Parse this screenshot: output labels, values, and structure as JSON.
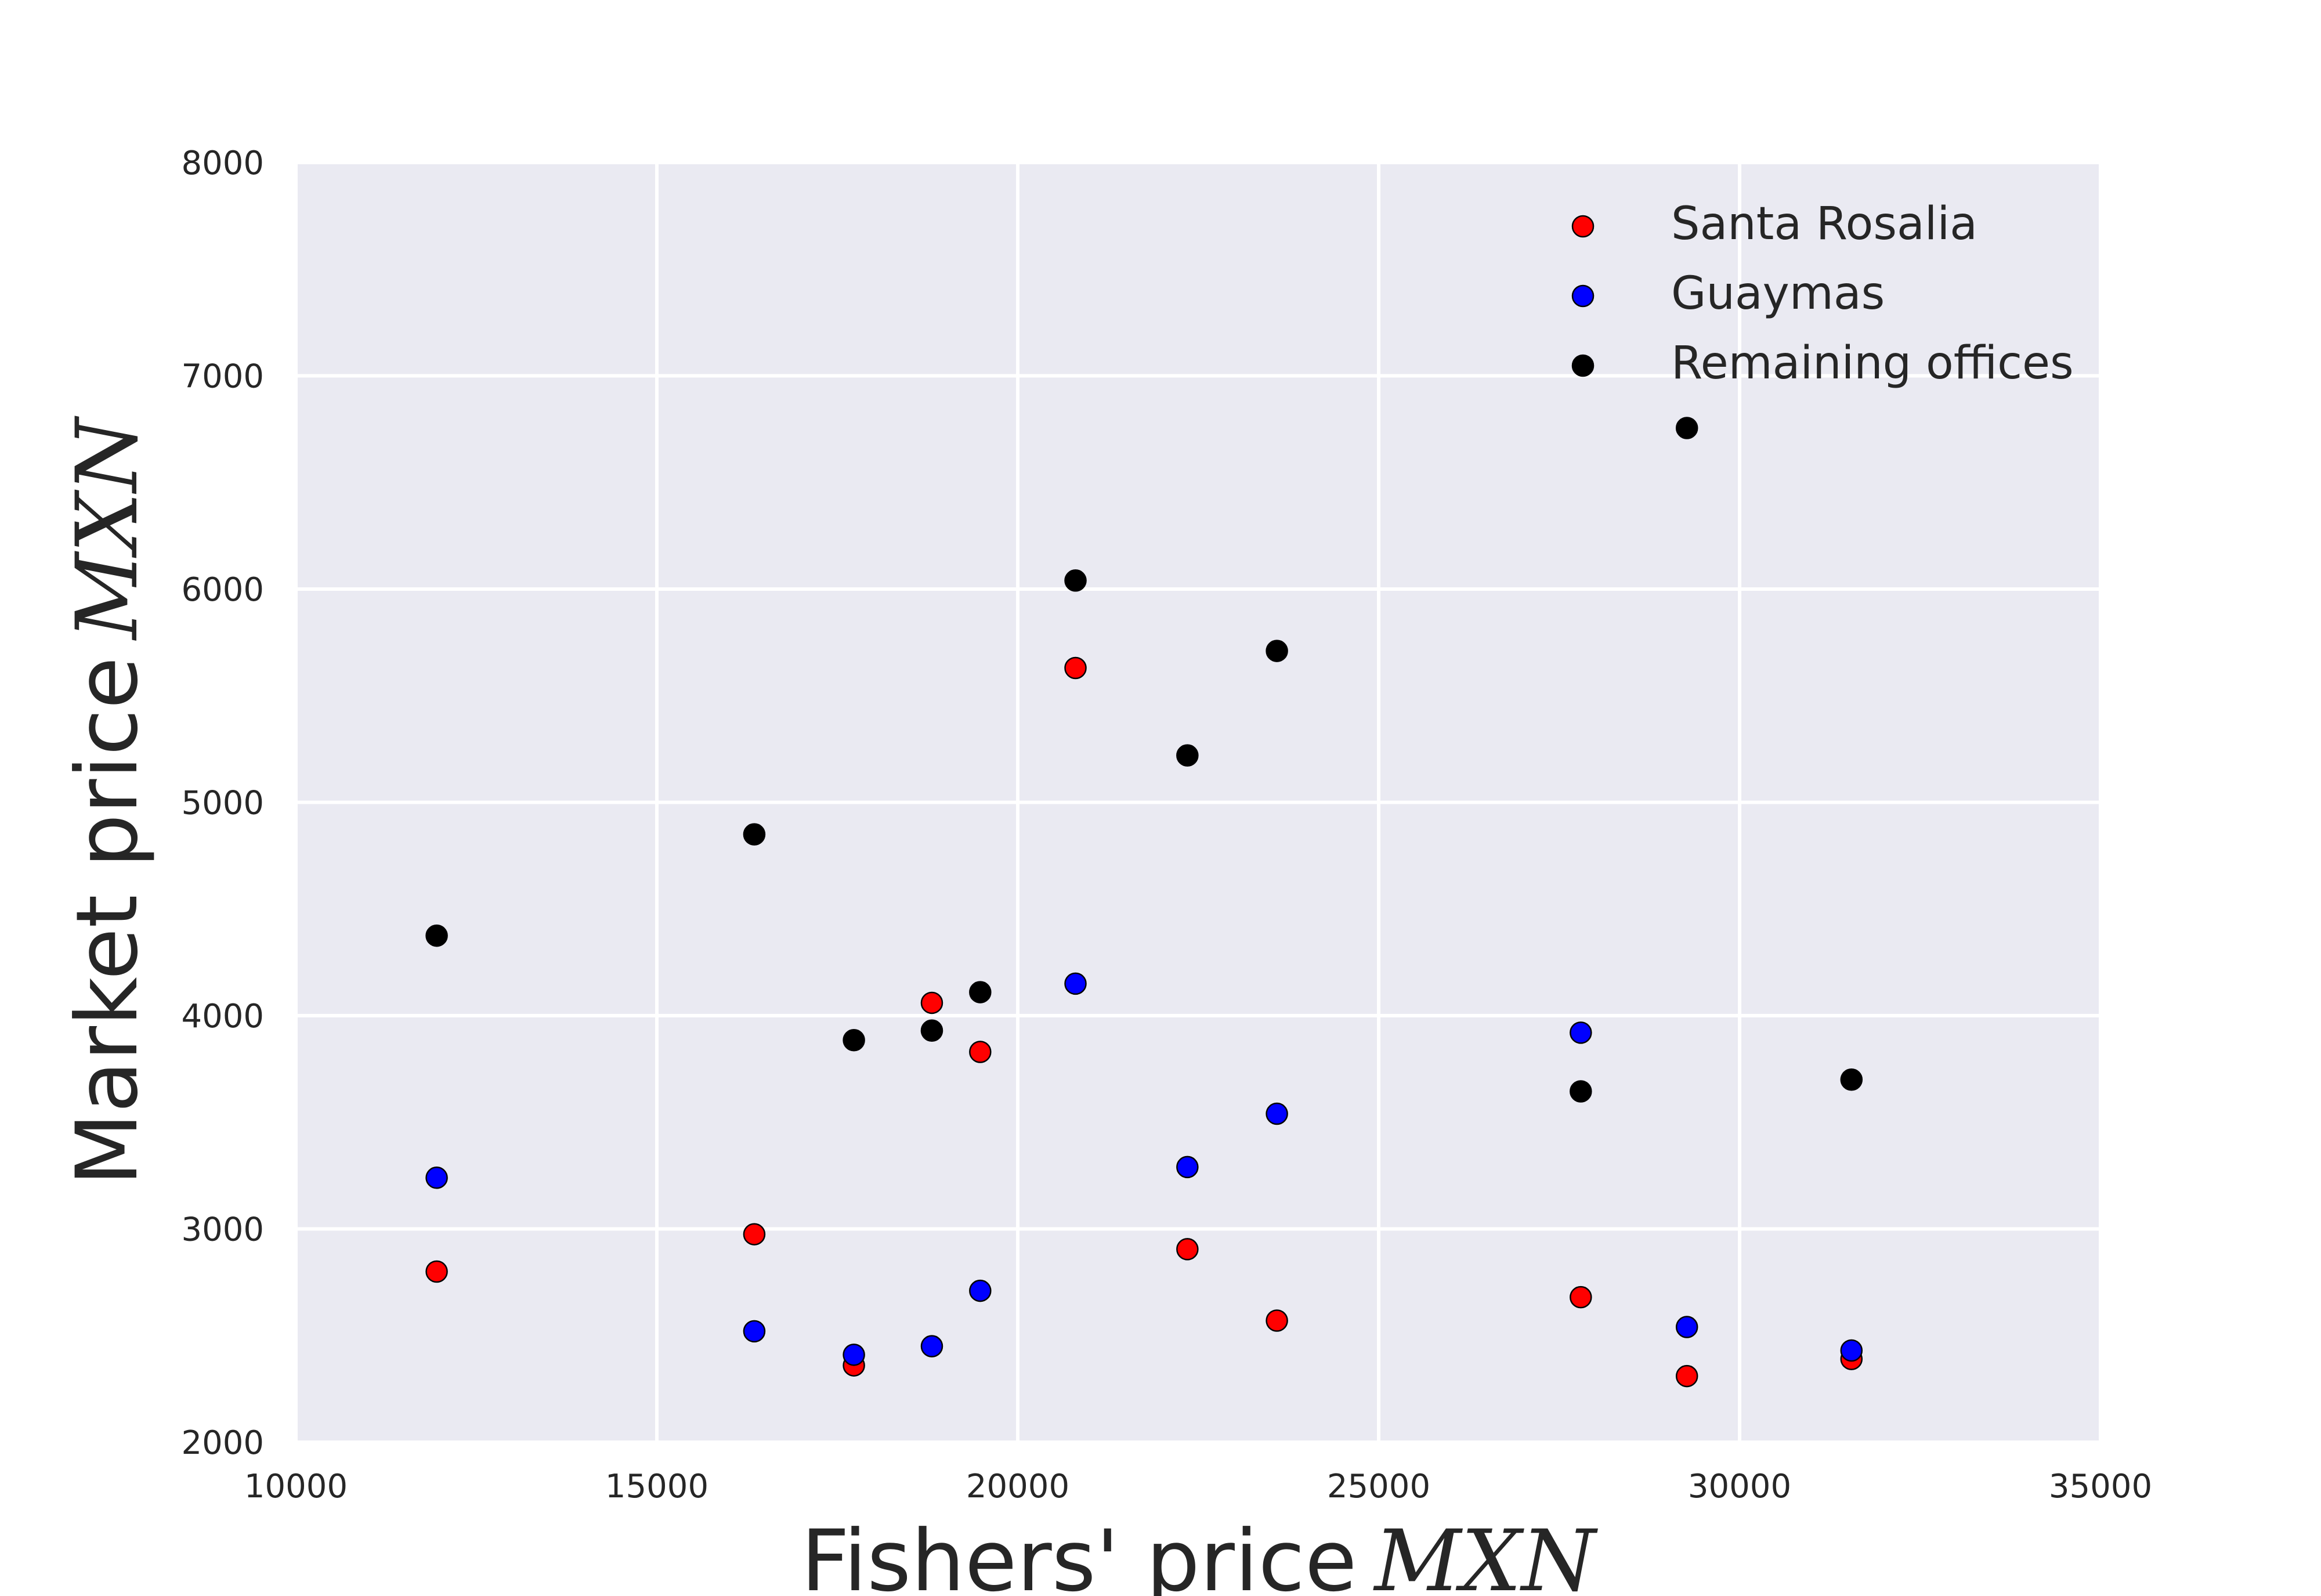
{
  "chart_data": {
    "type": "scatter",
    "xlabel": "Fishers' price",
    "xlabel_unit": "MXN",
    "ylabel": "Market price",
    "ylabel_unit": "MXN",
    "xlim": [
      10000,
      35000
    ],
    "ylim": [
      2000,
      8000
    ],
    "x_ticks": [
      10000,
      15000,
      20000,
      25000,
      30000,
      35000
    ],
    "x_tick_labels": [
      "10000",
      "15000",
      "20000",
      "25000",
      "30000",
      "35000"
    ],
    "y_ticks": [
      2000,
      3000,
      4000,
      5000,
      6000,
      7000,
      8000
    ],
    "y_tick_labels": [
      "2000",
      "3000",
      "4000",
      "5000",
      "6000",
      "7000",
      "8000"
    ],
    "grid": true,
    "legend_position": "top-right",
    "series": [
      {
        "name": "Santa Rosalia",
        "color": "#ff0000",
        "points": [
          [
            11950,
            2800
          ],
          [
            16350,
            2975
          ],
          [
            17730,
            2360
          ],
          [
            18810,
            4060
          ],
          [
            19480,
            3830
          ],
          [
            20800,
            5630
          ],
          [
            22350,
            2905
          ],
          [
            23590,
            2570
          ],
          [
            27800,
            2680
          ],
          [
            29270,
            2310
          ],
          [
            31550,
            2390
          ]
        ]
      },
      {
        "name": "Guaymas",
        "color": "#0000ff",
        "points": [
          [
            11950,
            3240
          ],
          [
            16350,
            2520
          ],
          [
            17730,
            2410
          ],
          [
            18810,
            2450
          ],
          [
            19480,
            2710
          ],
          [
            20800,
            4150
          ],
          [
            22350,
            3290
          ],
          [
            23590,
            3540
          ],
          [
            27800,
            3920
          ],
          [
            29270,
            2540
          ],
          [
            31550,
            2430
          ]
        ]
      },
      {
        "name": "Remaining offices",
        "color": "#000000",
        "points": [
          [
            11950,
            4375
          ],
          [
            16350,
            4850
          ],
          [
            17730,
            3885
          ],
          [
            18810,
            3930
          ],
          [
            19480,
            4110
          ],
          [
            20800,
            6040
          ],
          [
            22350,
            5220
          ],
          [
            23590,
            5710
          ],
          [
            27800,
            3645
          ],
          [
            29270,
            6755
          ],
          [
            31550,
            3700
          ]
        ]
      }
    ]
  },
  "style": {
    "plot_background": "#eaeaf2",
    "grid_color": "#ffffff",
    "text_color": "#262626",
    "marker_edge": "#000000"
  }
}
